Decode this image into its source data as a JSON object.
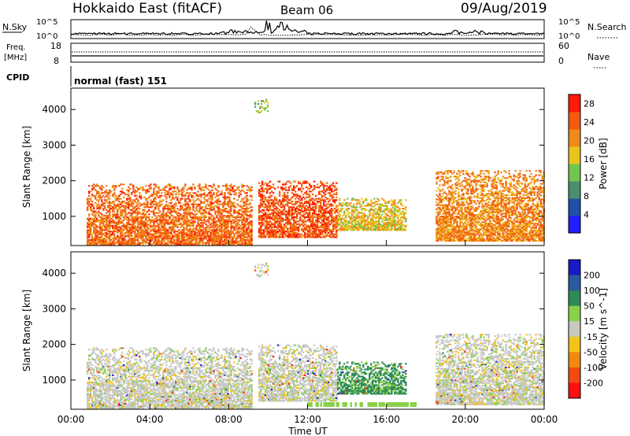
{
  "header": {
    "station": "Hokkaido East (fitACF)",
    "beam": "Beam 06",
    "date": "09/Aug/2019"
  },
  "strip_labels": {
    "nsky": "N.Sky",
    "freq_line1": "Freq.",
    "freq_line2": "[MHz]",
    "cpid": "CPID",
    "nsearch": "N.Search",
    "nave": "Nave",
    "nsky_ticks": [
      "10^5",
      "10^0"
    ],
    "freq_ticks": [
      "18",
      "8"
    ],
    "nsearch_ticks": [
      "10^5",
      "10^0"
    ],
    "nave_ticks": [
      "60",
      "0"
    ],
    "cpid_value": "normal (fast) 151"
  },
  "axes": {
    "ylabel": "Slant Range [km]",
    "xlabel": "Time UT",
    "yticks": [
      "1000",
      "2000",
      "3000",
      "4000"
    ],
    "xticks": [
      "00:00",
      "04:00",
      "08:00",
      "12:00",
      "16:00",
      "20:00",
      "00:00"
    ]
  },
  "colors": {
    "power": [
      "#1f1fff",
      "#2050a8",
      "#4b8f6e",
      "#6fc64e",
      "#e8c51e",
      "#f08a1a",
      "#f25a12",
      "#ff1a0a"
    ],
    "velocity_pos": [
      "#1a1ac8",
      "#2a5aa0",
      "#2e8b57",
      "#8ad14a"
    ],
    "velocity_neg": [
      "#c8c8c0",
      "#f2c418",
      "#f08a10",
      "#f24a10",
      "#ff1010"
    ],
    "velocity_gs": "#c8c8c8"
  },
  "chart_data": [
    {
      "type": "heatmap",
      "title": "",
      "ylabel": "Slant Range [km]",
      "xlabel": "",
      "x_range_hours": [
        0,
        24
      ],
      "ylim": [
        180,
        4600
      ],
      "colorbar": {
        "label": "Power [dB]",
        "ticks": [
          "4",
          "8",
          "12",
          "16",
          "20",
          "24",
          "28"
        ],
        "range": [
          0,
          30
        ]
      },
      "echo_regions": [
        {
          "t0": 0.8,
          "t1": 9.2,
          "r0": 200,
          "r1": 1900,
          "power_dB": 24
        },
        {
          "t0": 9.5,
          "t1": 13.5,
          "r0": 400,
          "r1": 2000,
          "power_dB": 26
        },
        {
          "t0": 13.5,
          "t1": 17.0,
          "r0": 600,
          "r1": 1500,
          "power_dB": 18
        },
        {
          "t0": 18.5,
          "t1": 24.0,
          "r0": 300,
          "r1": 2300,
          "power_dB": 22
        },
        {
          "t0": 9.3,
          "t1": 10.0,
          "r0": 3900,
          "r1": 4300,
          "power_dB": 14
        }
      ]
    },
    {
      "type": "heatmap",
      "title": "",
      "ylabel": "Slant Range [km]",
      "xlabel": "Time UT",
      "x_range_hours": [
        0,
        24
      ],
      "ylim": [
        180,
        4600
      ],
      "colorbar": {
        "label": "Velocity [m s^-1]",
        "ticks": [
          "200",
          "100",
          "50",
          "15",
          "-15",
          "-50",
          "-100",
          "-200"
        ],
        "range": [
          -250,
          250
        ]
      },
      "echo_regions": [
        {
          "t0": 0.8,
          "t1": 9.2,
          "r0": 200,
          "r1": 1900,
          "velocity": 0
        },
        {
          "t0": 9.5,
          "t1": 13.5,
          "r0": 400,
          "r1": 2000,
          "velocity": 0
        },
        {
          "t0": 12.0,
          "t1": 17.5,
          "r0": 200,
          "r1": 400,
          "velocity": 40
        },
        {
          "t0": 18.5,
          "t1": 24.0,
          "r0": 300,
          "r1": 2300,
          "velocity": 0
        }
      ]
    }
  ]
}
